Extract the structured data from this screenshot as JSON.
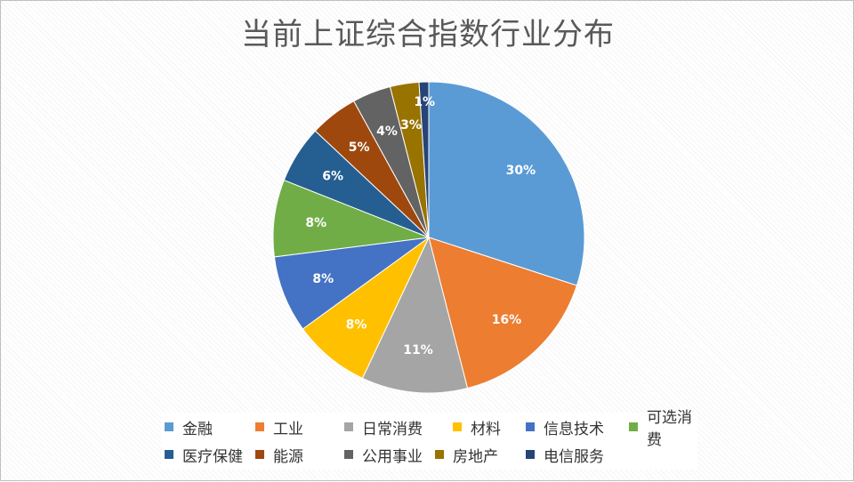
{
  "chart_data": {
    "type": "pie",
    "title": "当前上证综合指数行业分布",
    "categories": [
      "金融",
      "工业",
      "日常消费",
      "材料",
      "信息技术",
      "可选消费",
      "医疗保健",
      "能源",
      "公用事业",
      "房地产",
      "电信服务"
    ],
    "values": [
      30,
      16,
      11,
      8,
      8,
      8,
      6,
      5,
      4,
      3,
      1
    ],
    "labels": [
      "30%",
      "16%",
      "11%",
      "8%",
      "8%",
      "8%",
      "6%",
      "5%",
      "4%",
      "3%",
      "1%"
    ],
    "colors": [
      "#5B9BD5",
      "#ED7D31",
      "#A5A5A5",
      "#FFC000",
      "#4472C4",
      "#70AD47",
      "#255E91",
      "#9E480E",
      "#636363",
      "#997300",
      "#264478"
    ],
    "legend_position": "bottom"
  }
}
